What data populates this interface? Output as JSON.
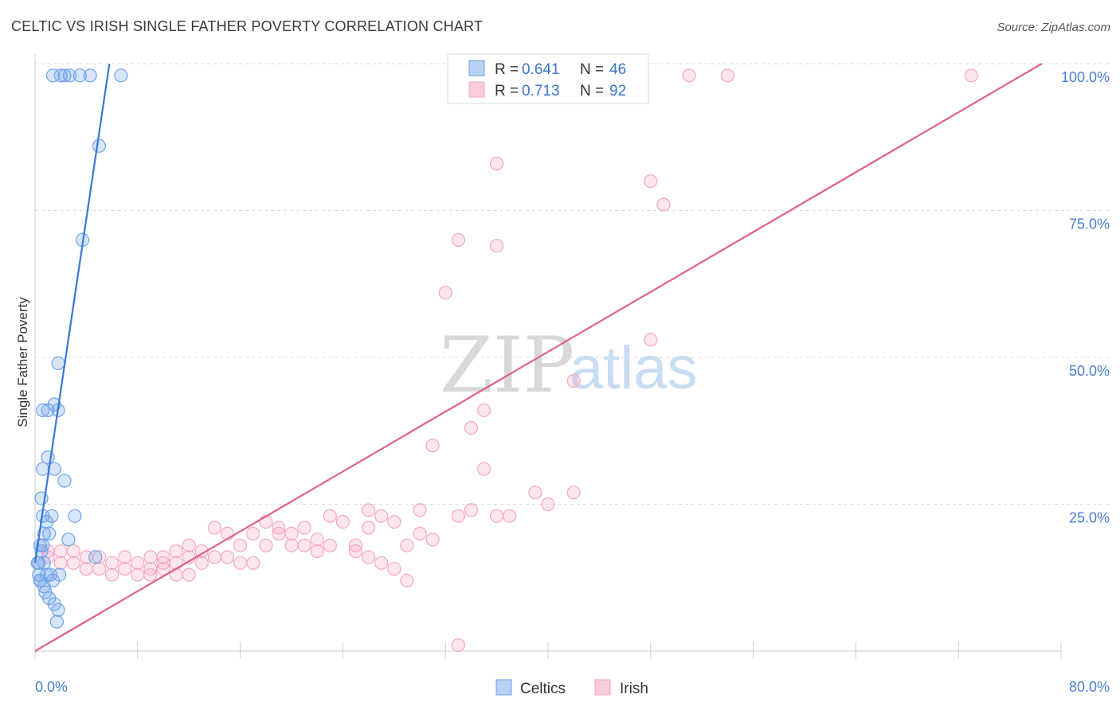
{
  "title": "CELTIC VS IRISH SINGLE FATHER POVERTY CORRELATION CHART",
  "source": "Source: ZipAtlas.com",
  "watermark": {
    "zip": "ZIP",
    "atlas": "atlas"
  },
  "legend": {
    "r_label": "R =",
    "n_label": "N =",
    "rows": [
      {
        "r": "0.641",
        "n": "46"
      },
      {
        "r": "0.713",
        "n": "92"
      }
    ]
  },
  "bottom_legend": [
    "Celtics",
    "Irish"
  ],
  "chart_data": {
    "type": "scatter",
    "title": "CELTIC VS IRISH SINGLE FATHER POVERTY CORRELATION CHART",
    "xlabel": "",
    "ylabel": "Single Father Poverty",
    "xlim": [
      0,
      80
    ],
    "ylim": [
      0,
      100
    ],
    "x_tick_labels": [
      "0.0%",
      "80.0%"
    ],
    "y_ticks": [
      25,
      50,
      75,
      100
    ],
    "y_tick_labels": [
      "25.0%",
      "50.0%",
      "75.0%",
      "100.0%"
    ],
    "grid": true,
    "series": [
      {
        "name": "Celtics",
        "color": "#6fa3e8",
        "line_color": "#3a78d4",
        "trend": {
          "x": [
            0.0,
            5.8
          ],
          "y": [
            15.0,
            100.0
          ]
        },
        "points": [
          [
            1.4,
            98
          ],
          [
            2.0,
            98
          ],
          [
            2.3,
            98
          ],
          [
            2.7,
            98
          ],
          [
            3.5,
            98
          ],
          [
            4.3,
            98
          ],
          [
            6.7,
            98
          ],
          [
            5.0,
            86
          ],
          [
            3.7,
            70
          ],
          [
            1.8,
            49
          ],
          [
            1.5,
            42
          ],
          [
            0.6,
            41
          ],
          [
            1.0,
            41
          ],
          [
            1.8,
            41
          ],
          [
            1.0,
            33
          ],
          [
            1.5,
            31
          ],
          [
            0.6,
            31
          ],
          [
            2.3,
            29
          ],
          [
            0.5,
            26
          ],
          [
            0.6,
            23
          ],
          [
            1.3,
            23
          ],
          [
            3.1,
            23
          ],
          [
            0.9,
            22
          ],
          [
            0.7,
            20
          ],
          [
            1.1,
            20
          ],
          [
            2.6,
            19
          ],
          [
            0.4,
            18
          ],
          [
            0.6,
            18
          ],
          [
            0.5,
            17
          ],
          [
            4.7,
            16
          ],
          [
            0.3,
            15
          ],
          [
            0.7,
            15
          ],
          [
            1.2,
            13
          ],
          [
            1.9,
            13
          ],
          [
            0.3,
            13
          ],
          [
            0.4,
            12
          ],
          [
            0.7,
            11
          ],
          [
            1.1,
            9
          ],
          [
            0.8,
            10
          ],
          [
            1.5,
            8
          ],
          [
            1.8,
            7
          ],
          [
            0.4,
            12
          ],
          [
            0.9,
            13
          ],
          [
            1.4,
            12
          ],
          [
            1.7,
            5
          ],
          [
            0.2,
            15
          ]
        ]
      },
      {
        "name": "Irish",
        "color": "#f4a6c2",
        "line_color": "#e0608c",
        "trend": {
          "x": [
            0.0,
            78.5
          ],
          "y": [
            0.0,
            100.0
          ]
        },
        "points": [
          [
            38,
            98
          ],
          [
            43,
            98
          ],
          [
            45,
            98
          ],
          [
            47,
            98
          ],
          [
            51,
            98
          ],
          [
            54,
            98
          ],
          [
            73,
            98
          ],
          [
            36,
            83
          ],
          [
            48,
            80
          ],
          [
            49,
            76
          ],
          [
            33,
            70
          ],
          [
            36,
            69
          ],
          [
            32,
            61
          ],
          [
            48,
            53
          ],
          [
            42,
            46
          ],
          [
            35,
            41
          ],
          [
            34,
            38
          ],
          [
            31,
            35
          ],
          [
            35,
            31
          ],
          [
            39,
            27
          ],
          [
            42,
            27
          ],
          [
            40,
            25
          ],
          [
            26,
            24
          ],
          [
            30,
            24
          ],
          [
            27,
            23
          ],
          [
            23,
            23
          ],
          [
            33,
            23
          ],
          [
            34,
            24
          ],
          [
            36,
            23
          ],
          [
            37,
            23
          ],
          [
            24,
            22
          ],
          [
            18,
            22
          ],
          [
            19,
            21
          ],
          [
            21,
            21
          ],
          [
            26,
            21
          ],
          [
            28,
            22
          ],
          [
            14,
            21
          ],
          [
            15,
            20
          ],
          [
            17,
            20
          ],
          [
            19,
            20
          ],
          [
            20,
            20
          ],
          [
            22,
            19
          ],
          [
            30,
            20
          ],
          [
            31,
            19
          ],
          [
            21,
            18
          ],
          [
            23,
            18
          ],
          [
            25,
            18
          ],
          [
            29,
            18
          ],
          [
            16,
            18
          ],
          [
            18,
            18
          ],
          [
            20,
            18
          ],
          [
            22,
            17
          ],
          [
            25,
            17
          ],
          [
            26,
            16
          ],
          [
            27,
            15
          ],
          [
            12,
            18
          ],
          [
            13,
            17
          ],
          [
            14,
            16
          ],
          [
            15,
            16
          ],
          [
            16,
            15
          ],
          [
            17,
            15
          ],
          [
            11,
            17
          ],
          [
            12,
            16
          ],
          [
            13,
            15
          ],
          [
            10,
            16
          ],
          [
            11,
            15
          ],
          [
            9,
            16
          ],
          [
            10,
            15
          ],
          [
            9,
            14
          ],
          [
            8,
            15
          ],
          [
            7,
            16
          ],
          [
            6,
            15
          ],
          [
            5,
            16
          ],
          [
            4,
            16
          ],
          [
            3,
            17
          ],
          [
            2,
            17
          ],
          [
            1,
            17
          ],
          [
            3,
            15
          ],
          [
            5,
            14
          ],
          [
            6,
            13
          ],
          [
            8,
            13
          ],
          [
            9,
            13
          ],
          [
            10,
            14
          ],
          [
            11,
            13
          ],
          [
            12,
            13
          ],
          [
            7,
            14
          ],
          [
            4,
            14
          ],
          [
            2,
            15
          ],
          [
            1,
            16
          ],
          [
            28,
            14
          ],
          [
            29,
            12
          ],
          [
            33,
            1
          ]
        ]
      }
    ]
  }
}
